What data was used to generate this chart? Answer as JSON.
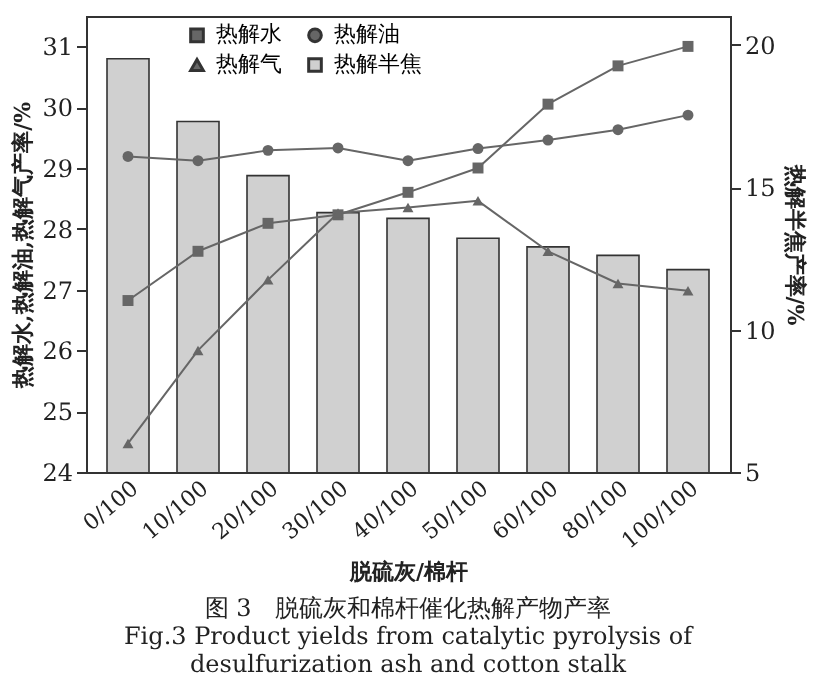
{
  "chart_data": {
    "type": "line",
    "categories": [
      "0/100",
      "10/100",
      "20/100",
      "30/100",
      "40/100",
      "50/100",
      "60/100",
      "80/100",
      "100/100"
    ],
    "xlabel": "脱硫灰/棉杆",
    "ylabel": "热解水,热解油,热解气产率/%",
    "y2label": "热解半焦产率/%",
    "ylim": [
      24,
      31.5
    ],
    "yticks": [
      24,
      25,
      26,
      27,
      28,
      29,
      30,
      31
    ],
    "y2lim": [
      5,
      21
    ],
    "y2ticks": [
      5,
      10,
      15,
      20
    ],
    "legend": "top",
    "grid": false,
    "series": [
      {
        "name": "热解水",
        "color": "#666666",
        "marker": "square",
        "values": [
          26.82,
          27.63,
          28.09,
          28.23,
          28.6,
          29.0,
          30.05,
          30.68,
          31.0
        ]
      },
      {
        "name": "热解油",
        "color": "#666666",
        "marker": "circle",
        "values": [
          29.19,
          29.12,
          29.29,
          29.33,
          29.12,
          29.32,
          29.46,
          29.63,
          29.87
        ]
      },
      {
        "name": "热解气",
        "color": "#666666",
        "marker": "triangle",
        "values": [
          24.47,
          26.0,
          27.16,
          28.26,
          28.35,
          28.46,
          27.63,
          27.1,
          26.98
        ]
      },
      {
        "name": "热解半焦",
        "type": "bar",
        "axis": "y2",
        "color": "#d0d0d0",
        "values": [
          19.5,
          17.3,
          15.4,
          14.1,
          13.9,
          13.2,
          12.9,
          12.6,
          12.1
        ]
      }
    ],
    "annotations": [
      "图 3　脱硫灰和棉杆催化热解产物产率",
      "Fig.3 Product yields from catalytic pyrolysis of",
      "desulfurization ash and cotton stalk"
    ]
  }
}
